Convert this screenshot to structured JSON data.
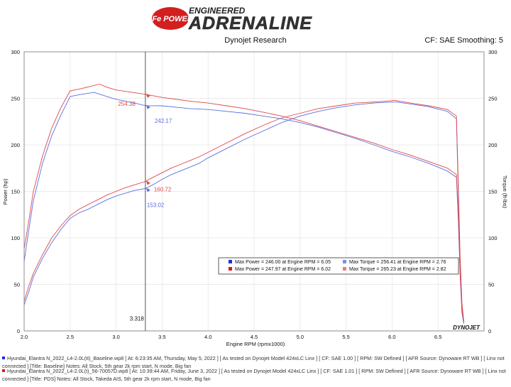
{
  "header": {
    "badge_text": "aFe POWER",
    "tagline": "ENGINEERED",
    "brand": "ADRENALINE",
    "subtitle": "Dynojet Research",
    "correction": "CF: SAE Smoothing: 5"
  },
  "colors": {
    "baseline": "#5a6ee0",
    "test": "#e04848",
    "marker_line": "#555555",
    "grid": "#e4e4e4",
    "plot_bg": "#ffffff",
    "legend_blue_square": "#1e2ee0",
    "legend_red_square": "#d81c1c",
    "legend_lightblue_square": "#7a8cf0",
    "legend_lightred_square": "#f07a7a"
  },
  "chart_data": {
    "type": "line",
    "xlabel": "Engine RPM (rpmx1000)",
    "ylabel_left": "Power (hp)",
    "ylabel_right": "Torque (ft-lbs)",
    "xlim": [
      2.0,
      7.0
    ],
    "ylim": [
      0,
      300
    ],
    "x_ticks": [
      "2.0",
      "2.5",
      "3.0",
      "3.5",
      "4.0",
      "4.5",
      "5.0",
      "5.5",
      "6.0",
      "6.5"
    ],
    "y_ticks": [
      "0",
      "50",
      "100",
      "150",
      "200",
      "250",
      "300"
    ],
    "grid": true,
    "watermark": "DYNOJET",
    "cursor": {
      "rpm": 3.318,
      "label": "3.318"
    },
    "annotations": [
      {
        "text": "254.38",
        "x": 3.318,
        "y": 254.38,
        "series": "test"
      },
      {
        "text": "242.17",
        "x": 3.318,
        "y": 242.17,
        "series": "baseline"
      },
      {
        "text": "160.72",
        "x": 3.318,
        "y": 160.72,
        "series": "test"
      },
      {
        "text": "153.02",
        "x": 3.318,
        "y": 153.02,
        "series": "baseline"
      }
    ],
    "series": [
      {
        "role": "baseline",
        "quantity": "power",
        "x": [
          2.0,
          2.05,
          2.1,
          2.2,
          2.3,
          2.4,
          2.5,
          2.6,
          2.7,
          2.8,
          2.9,
          3.0,
          3.1,
          3.2,
          3.318,
          3.4,
          3.5,
          3.6,
          3.7,
          3.8,
          3.9,
          4.0,
          4.2,
          4.4,
          4.6,
          4.8,
          5.0,
          5.2,
          5.4,
          5.6,
          5.8,
          6.0,
          6.05,
          6.2,
          6.4,
          6.6,
          6.7,
          6.72,
          6.74,
          6.76,
          6.78
        ],
        "y": [
          28,
          42,
          58,
          78,
          95,
          109,
          121,
          127,
          131,
          136,
          141,
          145,
          148,
          151,
          153.02,
          157,
          163,
          168,
          172,
          176,
          180,
          186,
          196,
          206,
          215,
          224,
          231,
          236,
          240,
          243,
          245,
          246,
          246,
          244,
          241,
          236,
          228,
          150,
          70,
          20,
          8
        ]
      },
      {
        "role": "test",
        "quantity": "power",
        "x": [
          2.0,
          2.05,
          2.1,
          2.2,
          2.3,
          2.4,
          2.5,
          2.6,
          2.7,
          2.8,
          2.9,
          3.0,
          3.1,
          3.2,
          3.318,
          3.4,
          3.5,
          3.6,
          3.7,
          3.8,
          3.9,
          4.0,
          4.2,
          4.4,
          4.6,
          4.8,
          5.0,
          5.2,
          5.4,
          5.6,
          5.8,
          6.0,
          6.02,
          6.2,
          6.4,
          6.6,
          6.7,
          6.72,
          6.74,
          6.76,
          6.78
        ],
        "y": [
          32,
          48,
          62,
          82,
          100,
          113,
          124,
          131,
          136,
          141,
          146,
          150,
          154,
          157,
          160.72,
          165,
          170,
          175,
          179,
          183,
          187,
          192,
          202,
          212,
          221,
          229,
          234,
          239,
          242,
          245,
          246,
          247.5,
          247.97,
          245,
          242,
          238,
          231,
          160,
          80,
          30,
          10
        ]
      },
      {
        "role": "baseline",
        "quantity": "torque",
        "x": [
          2.0,
          2.05,
          2.1,
          2.2,
          2.3,
          2.4,
          2.5,
          2.6,
          2.76,
          2.9,
          3.0,
          3.2,
          3.318,
          3.5,
          3.8,
          4.0,
          4.2,
          4.4,
          4.6,
          4.8,
          5.0,
          5.2,
          5.4,
          5.6,
          5.8,
          6.0,
          6.2,
          6.4,
          6.6,
          6.7,
          6.72,
          6.74,
          6.76,
          6.78
        ],
        "y": [
          75,
          108,
          140,
          180,
          210,
          232,
          252,
          254,
          256.41,
          252,
          249,
          245,
          242.17,
          242,
          239,
          238,
          236,
          234,
          231,
          228,
          224,
          219,
          213,
          207,
          200,
          193,
          187,
          180,
          172,
          165,
          120,
          60,
          20,
          8
        ]
      },
      {
        "role": "test",
        "quantity": "torque",
        "x": [
          2.0,
          2.05,
          2.1,
          2.2,
          2.3,
          2.4,
          2.5,
          2.6,
          2.82,
          2.9,
          3.0,
          3.2,
          3.318,
          3.5,
          3.8,
          4.0,
          4.2,
          4.4,
          4.6,
          4.8,
          5.0,
          5.2,
          5.4,
          5.6,
          5.8,
          6.0,
          6.2,
          6.4,
          6.6,
          6.7,
          6.72,
          6.74,
          6.76,
          6.78
        ],
        "y": [
          88,
          118,
          150,
          188,
          218,
          240,
          258,
          260,
          265.23,
          262,
          259,
          256,
          254.38,
          251,
          247,
          245,
          242,
          239,
          235,
          231,
          226,
          220,
          214,
          208,
          202,
          195,
          189,
          182,
          175,
          168,
          125,
          65,
          22,
          10
        ]
      }
    ]
  },
  "legend": {
    "rows": [
      {
        "left": "Max Power = 246.00 at Engine RPM = 6.05",
        "right": "Max Torque = 256.41 at Engine RPM = 2.76"
      },
      {
        "left": "Max Power = 247.97 at Engine RPM = 6.02",
        "right": "Max Torque = 265.23 at Engine RPM = 2.82"
      }
    ]
  },
  "footer": {
    "lines": [
      "Hyundai_Elantra N_2022_L4-2.0L(tt)_Baseline.wp8 [ At: 6:23:35 AM, Thursday, May 5, 2022 ] [ As tested on Dynojet Model 424xLC Linx ] [ CF: SAE 1.00 ] [ RPM: SW Defined ] [ AFR Source: Dynoware RT WB ] [ Linx not connected ] [Title: Baseline]  Notes: All Stock, 5th gear 2k rpm start, N mode, Big fan",
      "Hyundai_Elantra N_2022_L4-2.0L(t)_56-70057D.wp8 [ At: 10:39:44 AM, Friday, June 3, 2022 ] [ As tested on Dynojet Model 424xLC Linx ] [ CF: SAE 1.01 ] [ RPM: SW Defined ] [ AFR Source: Dynoware RT WB ] [ Linx not connected ] [Title: PDS]  Notes: All Stock, Takeda AIS, 5th gear 2k rpm start, N mode, Big fan"
    ]
  }
}
